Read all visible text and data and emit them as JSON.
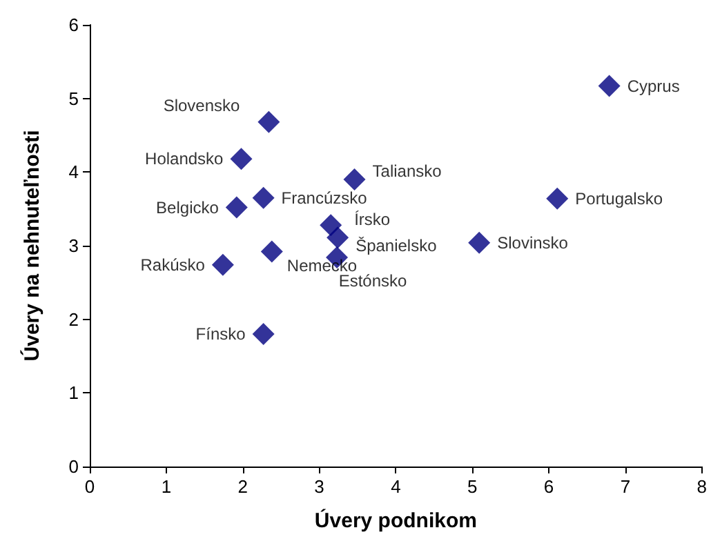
{
  "chart_data": {
    "type": "scatter",
    "xlabel": "Úvery podnikom",
    "ylabel": "Úvery na nehnuteľnosti",
    "x": [
      2.34,
      1.98,
      3.46,
      2.27,
      1.92,
      3.15,
      3.24,
      3.23,
      2.38,
      1.74,
      2.27,
      6.79,
      6.11,
      5.09
    ],
    "values": [
      4.68,
      4.18,
      3.9,
      3.65,
      3.52,
      3.28,
      3.11,
      2.84,
      2.92,
      2.74,
      1.8,
      5.17,
      3.64,
      3.04
    ],
    "value_labels": [
      "Slovensko",
      "Holandsko",
      "Taliansko",
      "Francúzsko",
      "Belgicko",
      "Írsko",
      "Španielsko",
      "Estónsko",
      "Nemecko",
      "Rakúsko",
      "Fínsko",
      "Cyprus",
      "Portugalsko",
      "Slovinsko"
    ],
    "color": "#000080",
    "marker": "diamond",
    "grid": false,
    "xlim": [
      0,
      8
    ],
    "xticks": [
      0,
      1,
      2,
      3,
      4,
      5,
      6,
      7,
      8
    ],
    "ylim": [
      0,
      6
    ],
    "yticks": [
      0,
      1,
      2,
      3,
      4,
      5,
      6
    ]
  }
}
